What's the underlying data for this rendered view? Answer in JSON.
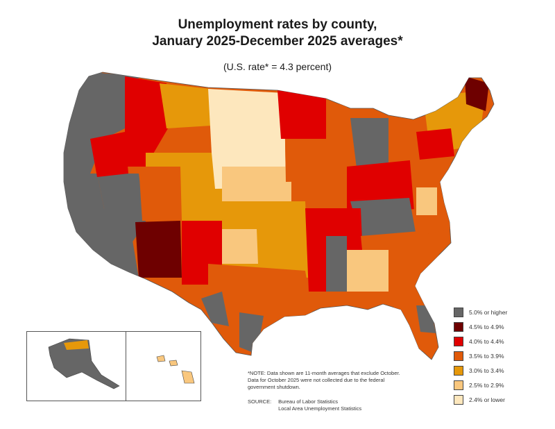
{
  "title_line1": "Unemployment rates by county,",
  "title_line2": "January 2025-December 2025 averages*",
  "subtitle": "(U.S. rate* = 4.3 percent)",
  "legend": [
    {
      "label": "5.0% or higher",
      "color": "#666666"
    },
    {
      "label": "4.5% to 4.9%",
      "color": "#6e0000"
    },
    {
      "label": "4.0% to 4.4%",
      "color": "#e00000"
    },
    {
      "label": "3.5% to 3.9%",
      "color": "#e05a0a"
    },
    {
      "label": "3.0% to 3.4%",
      "color": "#e6980a"
    },
    {
      "label": "2.5% to 2.9%",
      "color": "#f9c77e"
    },
    {
      "label": "2.4% or lower",
      "color": "#fde7bd"
    }
  ],
  "note_lines": [
    "*NOTE: Data shown are 11-month averages that exclude October.",
    "Data for October 2025 were not collected due to the federal",
    "government shutdown."
  ],
  "source_label": "SOURCE:",
  "source_lines": [
    "Bureau of Labor Statistics",
    "Local Area Unemployment Statistics"
  ],
  "map_regions": [
    {
      "region": "pacific-northwest",
      "class": "5.0% or higher"
    },
    {
      "region": "california",
      "class": "5.0% or higher"
    },
    {
      "region": "nevada",
      "class": "5.0% or higher"
    },
    {
      "region": "arizona",
      "class": "4.5% to 4.9%"
    },
    {
      "region": "idaho-montana",
      "class": "4.0% to 4.4%"
    },
    {
      "region": "wyoming-colorado",
      "class": "3.0% to 3.4%"
    },
    {
      "region": "dakotas-nebraska",
      "class": "2.4% or lower"
    },
    {
      "region": "kansas-oklahoma",
      "class": "3.0% to 3.4%"
    },
    {
      "region": "new-mexico",
      "class": "4.0% to 4.4%"
    },
    {
      "region": "texas",
      "class": "3.5% to 3.9%"
    },
    {
      "region": "upper-midwest",
      "class": "3.5% to 3.9%"
    },
    {
      "region": "michigan",
      "class": "5.0% or higher"
    },
    {
      "region": "ohio-valley",
      "class": "4.0% to 4.4%"
    },
    {
      "region": "appalachia",
      "class": "5.0% or higher"
    },
    {
      "region": "southeast",
      "class": "3.5% to 3.9%"
    },
    {
      "region": "alabama-georgia",
      "class": "2.5% to 2.9%"
    },
    {
      "region": "florida",
      "class": "3.5% to 3.9%"
    },
    {
      "region": "mid-atlantic",
      "class": "3.5% to 3.9%"
    },
    {
      "region": "new-england",
      "class": "3.0% to 3.4%"
    },
    {
      "region": "maine",
      "class": "4.5% to 4.9%"
    },
    {
      "region": "alaska",
      "class": "5.0% or higher"
    },
    {
      "region": "hawaii",
      "class": "3.0% to 3.4%"
    }
  ]
}
